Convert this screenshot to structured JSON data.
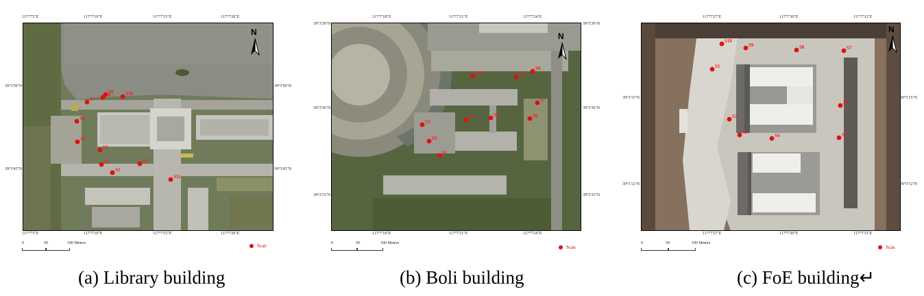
{
  "panels": [
    {
      "id": "library",
      "caption": "(a) Library building",
      "top_ticks": [
        "117°7'5\"E",
        "117°7'10\"E",
        "117°7'15\"E",
        "117°7'20\"E"
      ],
      "bottom_ticks": [
        "117°7'5\"E",
        "117°7'10\"E",
        "117°7'15\"E",
        "117°7'20\"E"
      ],
      "left_ticks": [
        "39°3'50\"N",
        "39°3'45\"N"
      ],
      "right_ticks": [
        "39°3'50\"N",
        "39°3'45\"N"
      ],
      "north_label": "N",
      "scale_labels": [
        "0",
        "50",
        "100 Meters"
      ],
      "legend_label": "Scan",
      "scans": [
        "S1",
        "S2",
        "S3",
        "S4",
        "S5",
        "S6",
        "S7",
        "S8",
        "S9",
        "S10",
        "S11"
      ]
    },
    {
      "id": "boli",
      "caption": "(b) Boli building",
      "top_ticks": [
        "117°7'18\"E",
        "117°7'21\"E",
        "117°7'24\"E"
      ],
      "bottom_ticks": [
        "117°7'18\"E",
        "117°7'21\"E",
        "117°7'24\"E"
      ],
      "left_ticks": [
        "39°3'39\"N",
        "39°3'36\"N",
        "39°3'33\"N"
      ],
      "right_ticks": [
        "39°3'39\"N",
        "39°3'36\"N",
        "39°3'33\"N"
      ],
      "north_label": "N",
      "scale_labels": [
        "0",
        "50",
        "100 Meters"
      ],
      "legend_label": "Scan",
      "scans": [
        "S1",
        "S2",
        "S3",
        "S4",
        "S5",
        "S6",
        "S7",
        "S8",
        "S9",
        "S10"
      ]
    },
    {
      "id": "foe",
      "caption": "(c) FoE building↵",
      "top_ticks": [
        "117°7'27\"E",
        "117°7'30\"E",
        "117°7'33\"E"
      ],
      "bottom_ticks": [
        "117°7'27\"E",
        "117°7'30\"E",
        "117°7'33\"E"
      ],
      "left_ticks": [
        "39°3'15\"N",
        "39°3'12\"N"
      ],
      "right_ticks": [
        "39°3'15\"N",
        "39°3'12\"N"
      ],
      "north_label": "N",
      "scale_labels": [
        "0",
        "50",
        "100 Meters"
      ],
      "legend_label": "Scan",
      "scans": [
        "S1",
        "S2",
        "S3",
        "S4",
        "S5",
        "S6",
        "S7",
        "S8",
        "S9",
        "S10"
      ]
    }
  ],
  "colors": {
    "scan_point": "#e01010",
    "water": "#8a8a80",
    "vegetation": "#5d6b3c",
    "pavement": "#bdbdb4",
    "roof": "#d6d6d0",
    "snow": "#e9e9e6",
    "soil": "#a08c78"
  }
}
